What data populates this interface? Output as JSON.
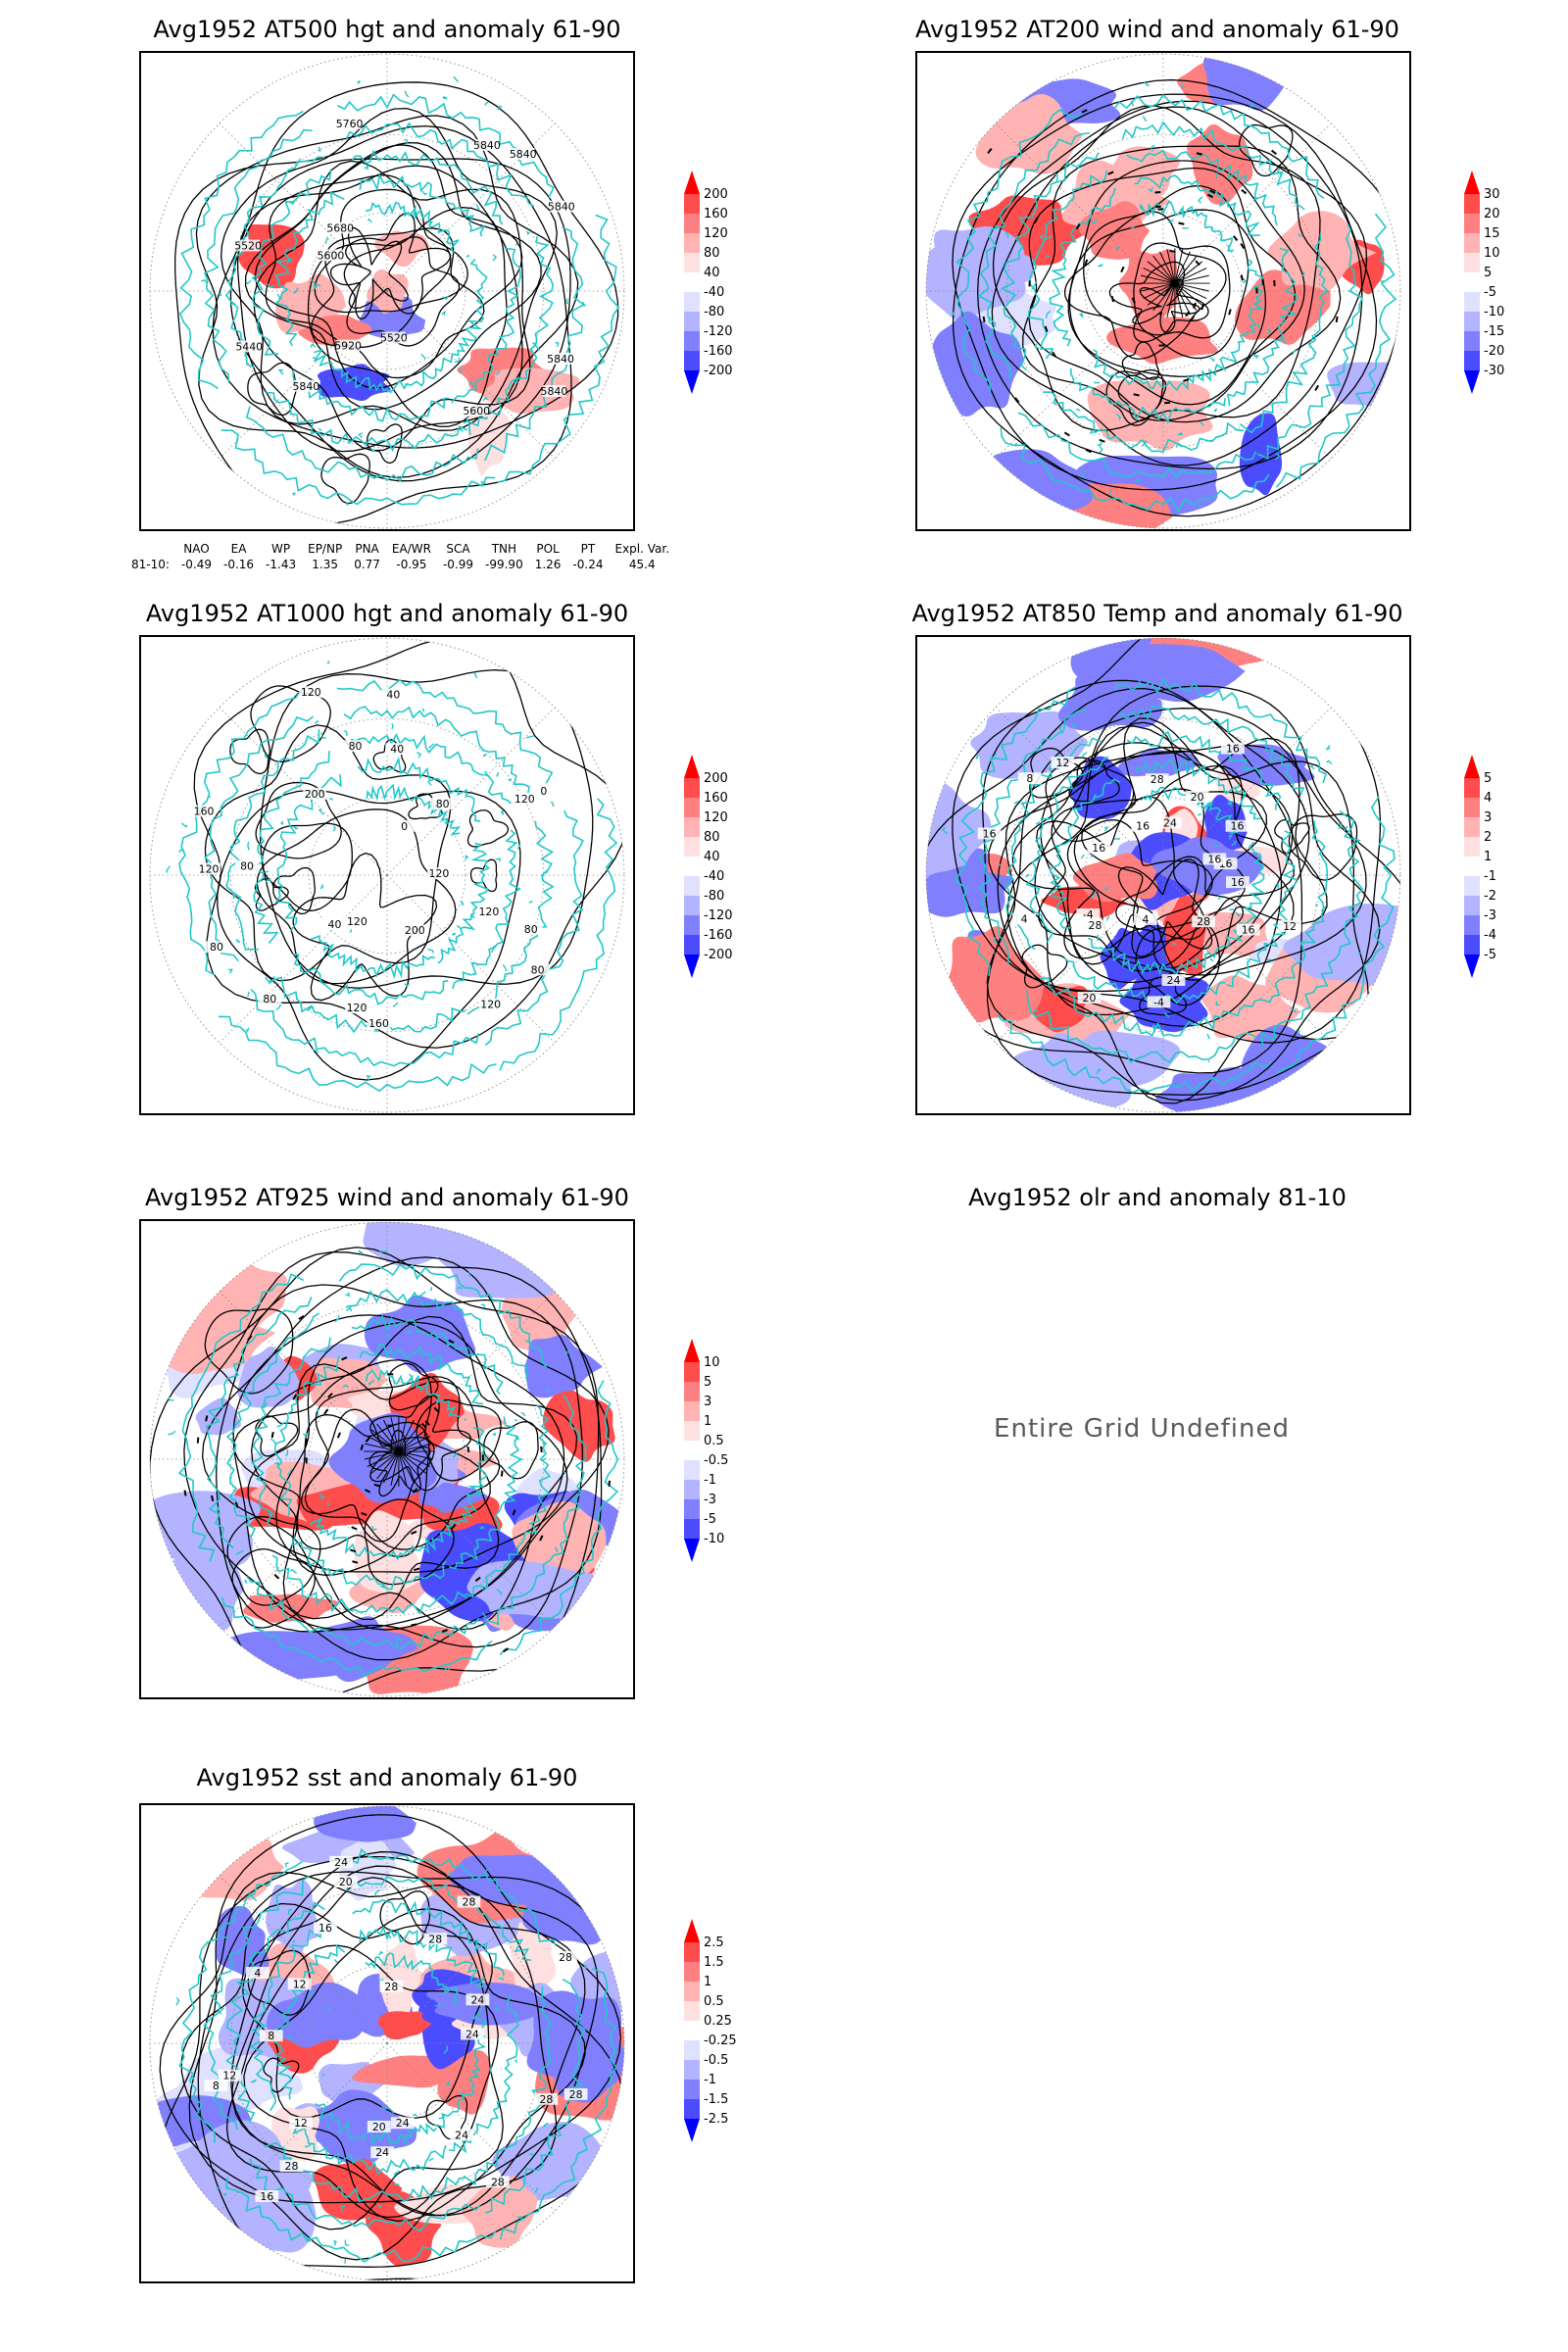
{
  "panels": [
    {
      "title": "Avg1952 AT500 hgt and anomaly 61-90",
      "contour_labels": [
        "5840",
        "5840",
        "5600",
        "5520",
        "5920",
        "5840",
        "5440",
        "5520",
        "5600",
        "5680",
        "5760",
        "5840",
        "5840",
        "5840"
      ]
    },
    {
      "title": "Avg1952 AT200 wind and anomaly 61-90"
    },
    {
      "title": "Avg1952 AT1000 hgt and anomaly 61-90",
      "contour_labels": [
        "120",
        "80",
        "80",
        "120",
        "200",
        "160",
        "120",
        "120",
        "80",
        "40",
        "80",
        "80",
        "120",
        "160",
        "200",
        "120",
        "80",
        "40",
        "40",
        "0",
        "80",
        "0",
        "120",
        "120"
      ]
    },
    {
      "title": "Avg1952 AT850 Temp and anomaly 61-90",
      "contour_labels": [
        "16",
        "12",
        "16",
        "28",
        "24",
        "-4",
        "4",
        "20",
        "28",
        "-4",
        "4",
        "16",
        "16",
        "8",
        "12",
        "16",
        "28",
        "24",
        "20",
        "16",
        "16",
        "16",
        "16"
      ]
    },
    {
      "title": "Avg1952 AT925 wind and anomaly 61-90"
    },
    {
      "title": "Avg1952 olr and anomaly 81-10",
      "message": "Entire Grid Undefined"
    },
    {
      "title": "Avg1952 sst and anomaly 61-90",
      "contour_labels": [
        "28",
        "28",
        "28",
        "24",
        "24",
        "24",
        "20",
        "28",
        "16",
        "12",
        "12",
        "8",
        "8",
        "4",
        "12",
        "16",
        "20",
        "24",
        "28",
        "28",
        "28",
        "24",
        "28",
        "24"
      ]
    }
  ],
  "colorbars": [
    {
      "levels": [
        "200",
        "160",
        "120",
        "80",
        "40",
        "-40",
        "-80",
        "-120",
        "-160",
        "-200"
      ]
    },
    {
      "levels": [
        "30",
        "20",
        "15",
        "10",
        "5",
        "-5",
        "-10",
        "-15",
        "-20",
        "-30"
      ]
    },
    {
      "levels": [
        "200",
        "160",
        "120",
        "80",
        "40",
        "-40",
        "-80",
        "-120",
        "-160",
        "-200"
      ]
    },
    {
      "levels": [
        "5",
        "4",
        "3",
        "2",
        "1",
        "-1",
        "-2",
        "-3",
        "-4",
        "-5"
      ]
    },
    {
      "levels": [
        "10",
        "5",
        "3",
        "1",
        "0.5",
        "-0.5",
        "-1",
        "-3",
        "-5",
        "-10"
      ]
    },
    {
      "levels": [
        "2.5",
        "1.5",
        "1",
        "0.5",
        "0.25",
        "-0.25",
        "-0.5",
        "-1",
        "-1.5",
        "-2.5"
      ]
    }
  ],
  "colorbar_colors": [
    "#ff0000",
    "#ff4c4c",
    "#ff8080",
    "#ffb3b3",
    "#ffe0e0",
    "#ffffff",
    "#e0e0ff",
    "#b3b3ff",
    "#8080ff",
    "#4c4cff",
    "#0000ff"
  ],
  "indices": {
    "headers": [
      "NAO",
      "EA",
      "WP",
      "EP/NP",
      "PNA",
      "EA/WR",
      "SCA",
      "TNH",
      "POL",
      "PT",
      "Expl. Var."
    ],
    "row_label": "81-10:",
    "values": [
      "-0.49",
      "-0.16",
      "-1.43",
      "1.35",
      "0.77",
      "-0.95",
      "-0.99",
      "-99.90",
      "1.26",
      "-0.24",
      "45.4"
    ]
  },
  "colors": {
    "coastline": "#20c8c8",
    "positive_anomaly": "#ff0000",
    "negative_anomaly": "#0000ff",
    "contour": "#000000",
    "undefined_text": "#5a5a5a"
  }
}
